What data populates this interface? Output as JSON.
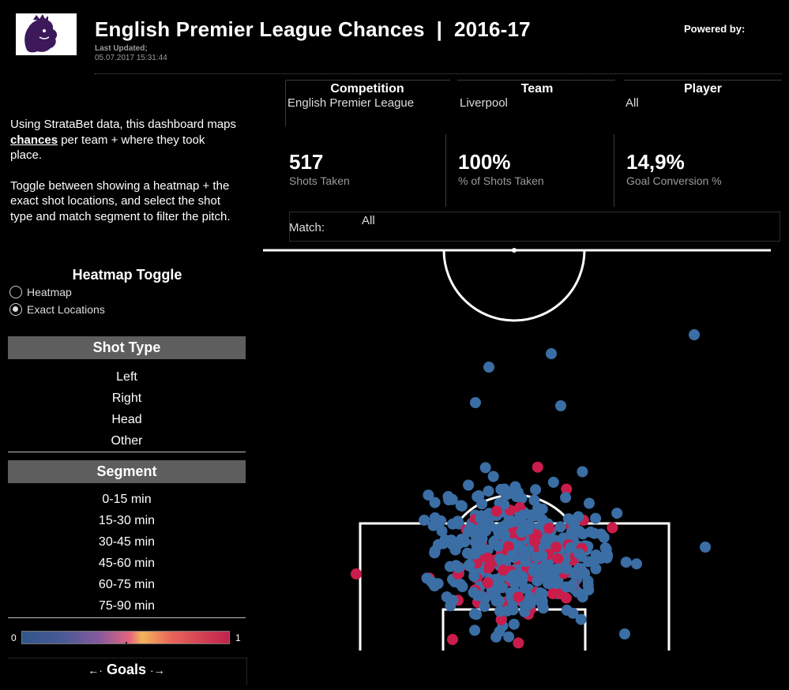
{
  "header": {
    "title": "English Premier League Chances  |  2016-17",
    "updated_label": "Last Updated;",
    "updated_value": "05.07.2017 15:31:44",
    "powered_by": "Powered by:"
  },
  "intro": {
    "p1_prefix": "Using StrataBet data, this dashboard maps ",
    "p1_em": "chances",
    "p1_suffix": " per team + where they took place.",
    "p2": "Toggle between showing a heatmap + the exact shot locations, and select the shot type and match segment to filter the pitch."
  },
  "heatmap_toggle": {
    "title": "Heatmap Toggle",
    "options": [
      "Heatmap",
      "Exact Locations"
    ],
    "selected": "Exact Locations"
  },
  "shot_type": {
    "title": "Shot Type",
    "items": [
      "Left",
      "Right",
      "Head",
      "Other"
    ]
  },
  "segment": {
    "title": "Segment",
    "items": [
      "0-15 min",
      "15-30 min",
      "30-45 min",
      "45-60 min",
      "60-75 min",
      "75-90 min"
    ]
  },
  "legend": {
    "min": "0",
    "max": "1",
    "title": "Goals"
  },
  "filters": {
    "competition": {
      "label": "Competition",
      "value": "English Premier League"
    },
    "team": {
      "label": "Team",
      "value": "Liverpool"
    },
    "player": {
      "label": "Player",
      "value": "All"
    },
    "match": {
      "label": "Match:",
      "value": "All"
    }
  },
  "kpis": [
    {
      "value": "517",
      "label": "Shots Taken"
    },
    {
      "value": "100%",
      "label": "% of Shots Taken"
    },
    {
      "value": "14,9%",
      "label": "Goal Conversion %"
    }
  ],
  "colors": {
    "no_goal": "#3b6ea5",
    "goal": "#c91d4c",
    "pitch_lines": "#ffffff"
  }
}
